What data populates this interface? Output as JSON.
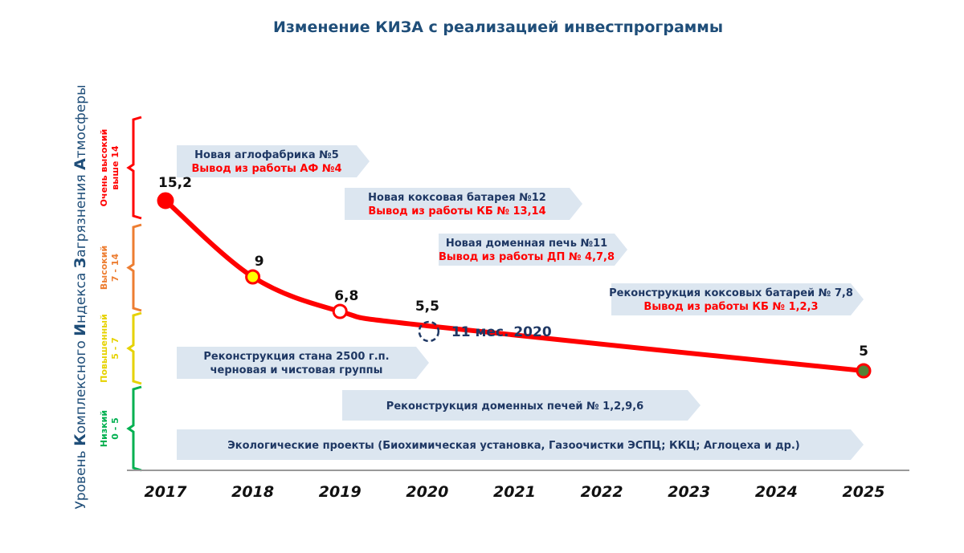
{
  "chart_data": {
    "type": "line",
    "title": "Изменение КИЗА с реализацией инвестпрограммы",
    "ylabel_parts": [
      {
        "t": "Уровень ",
        "big": false
      },
      {
        "t": "К",
        "big": true
      },
      {
        "t": "омплексного ",
        "big": false
      },
      {
        "t": "И",
        "big": true
      },
      {
        "t": "ндекса ",
        "big": false
      },
      {
        "t": "З",
        "big": true
      },
      {
        "t": "агрязнения ",
        "big": false
      },
      {
        "t": "А",
        "big": true
      },
      {
        "t": "тмосферы",
        "big": false
      }
    ],
    "xlim": [
      2017,
      2025
    ],
    "ylim": [
      0,
      16
    ],
    "categories": [
      "2017",
      "2018",
      "2019",
      "2020",
      "2021",
      "2022",
      "2023",
      "2024",
      "2025"
    ],
    "series": [
      {
        "x": [
          2017,
          2018,
          2019,
          2020,
          2025
        ],
        "values": [
          15.2,
          9,
          6.8,
          5.5,
          5
        ],
        "labels": [
          "15,2",
          "9",
          "6,8",
          "5,5",
          "5"
        ],
        "marker_colors": [
          "#ff0000",
          "#ffff00",
          "#ffffff",
          "#ffffff",
          "#548235"
        ],
        "color": "#ff0000"
      }
    ],
    "annotation": "11 мес. 2020",
    "zones": [
      {
        "name": "Очень высокий",
        "range_label": "выше 14",
        "color": "#ff0000"
      },
      {
        "name": "Высокий",
        "range_label": "7 - 14",
        "color": "#ed7d31"
      },
      {
        "name": "Повышенный",
        "range_label": "5 - 7",
        "color": "#e6d200"
      },
      {
        "name": "Низкий",
        "range_label": "0 - 5",
        "color": "#00b050"
      }
    ],
    "banners": [
      {
        "main": "Новая аглофабрика №5",
        "sub": "Вывод из работы АФ №4"
      },
      {
        "main": "Новая коксовая батарея №12",
        "sub": "Вывод из работы КБ № 13,14"
      },
      {
        "main": "Новая доменная печь №11",
        "sub": "Вывод из работы ДП № 4,7,8"
      },
      {
        "main": "Реконструкция коксовых батарей № 7,8",
        "sub": "Вывод из работы КБ № 1,2,3"
      },
      {
        "main": "Реконструкция стана 2500 г.п.",
        "sub": "черновая и чистовая группы"
      },
      {
        "main": "Реконструкция доменных печей № 1,2,9,6",
        "sub": ""
      },
      {
        "main": "Экологические проекты (Биохимическая установка, Газоочистки ЭСПЦ; ККЦ; Аглоцеха и др.)",
        "sub": ""
      }
    ],
    "grid": false,
    "legend": "none"
  }
}
